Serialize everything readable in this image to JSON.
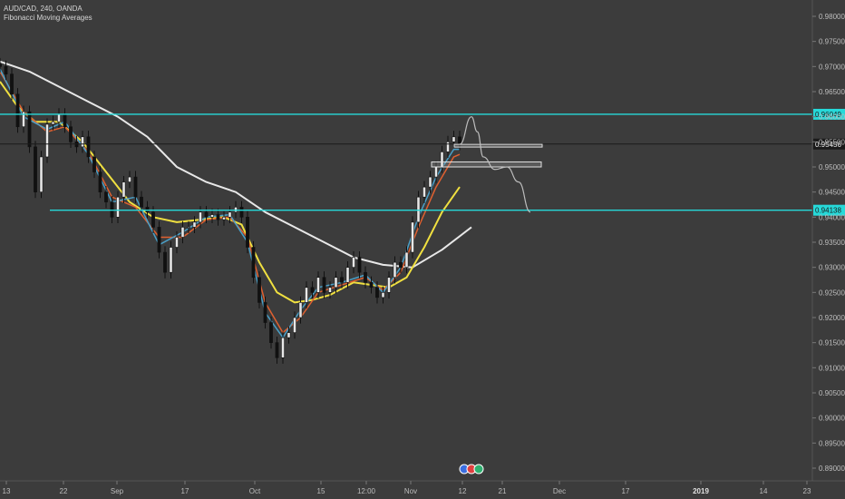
{
  "header": {
    "symbol": "AUD/CAD, 240, OANDA",
    "indicator": "Fibonacci Moving Averages"
  },
  "chart_data": {
    "type": "candlestick",
    "symbol": "AUD/CAD",
    "interval": "240",
    "source": "OANDA",
    "indicator": "Fibonacci Moving Averages",
    "y_axis": {
      "ticks": [
        "0.98000",
        "0.97500",
        "0.97000",
        "0.96500",
        "0.96000",
        "0.95500",
        "0.95000",
        "0.94500",
        "0.94000",
        "0.93500",
        "0.93000",
        "0.92500",
        "0.92000",
        "0.91500",
        "0.91000",
        "0.90500",
        "0.90000",
        "0.89500",
        "0.89000"
      ],
      "range": [
        0.8885,
        0.9825
      ]
    },
    "x_axis": {
      "ticks": [
        {
          "label": "13",
          "bold": false
        },
        {
          "label": "22",
          "bold": false
        },
        {
          "label": "Sep",
          "bold": false
        },
        {
          "label": "17",
          "bold": false
        },
        {
          "label": "Oct",
          "bold": false
        },
        {
          "label": "15",
          "bold": false
        },
        {
          "label": "12:00",
          "bold": false
        },
        {
          "label": "Nov",
          "bold": false
        },
        {
          "label": "12",
          "bold": false
        },
        {
          "label": "21",
          "bold": false
        },
        {
          "label": "Dec",
          "bold": false
        },
        {
          "label": "17",
          "bold": false
        },
        {
          "label": "2019",
          "bold": true
        },
        {
          "label": "14",
          "bold": false
        },
        {
          "label": "23",
          "bold": false
        }
      ]
    },
    "horizontal_levels": [
      {
        "price": 0.96049,
        "label": "0.96049",
        "color": "#26d9d9"
      },
      {
        "price": 0.94138,
        "label": "0.94138",
        "color": "#26d9d9"
      }
    ],
    "current_price": {
      "price": 0.95456,
      "label": "0.95456"
    },
    "zones": [
      {
        "price_top": 0.9545,
        "price_bottom": 0.954
      },
      {
        "price_top": 0.951,
        "price_bottom": 0.95
      }
    ],
    "price_path": [
      [
        0,
        0.97
      ],
      [
        1,
        0.9685
      ],
      [
        2,
        0.9645
      ],
      [
        3,
        0.958
      ],
      [
        4,
        0.961
      ],
      [
        5,
        0.954
      ],
      [
        6,
        0.945
      ],
      [
        7,
        0.952
      ],
      [
        8,
        0.9585
      ],
      [
        9,
        0.959
      ],
      [
        10,
        0.9605
      ],
      [
        11,
        0.958
      ],
      [
        12,
        0.955
      ],
      [
        13,
        0.954
      ],
      [
        14,
        0.956
      ],
      [
        15,
        0.952
      ],
      [
        16,
        0.949
      ],
      [
        17,
        0.945
      ],
      [
        18,
        0.943
      ],
      [
        19,
        0.94
      ],
      [
        20,
        0.944
      ],
      [
        21,
        0.947
      ],
      [
        22,
        0.948
      ],
      [
        23,
        0.944
      ],
      [
        24,
        0.942
      ],
      [
        25,
        0.941
      ],
      [
        26,
        0.938
      ],
      [
        27,
        0.933
      ],
      [
        28,
        0.929
      ],
      [
        29,
        0.934
      ],
      [
        30,
        0.936
      ],
      [
        31,
        0.938
      ],
      [
        32,
        0.938
      ],
      [
        33,
        0.939
      ],
      [
        34,
        0.941
      ],
      [
        35,
        0.94
      ],
      [
        36,
        0.9405
      ],
      [
        37,
        0.9395
      ],
      [
        38,
        0.94
      ],
      [
        39,
        0.941
      ],
      [
        40,
        0.942
      ],
      [
        41,
        0.94
      ],
      [
        42,
        0.934
      ],
      [
        43,
        0.928
      ],
      [
        44,
        0.923
      ],
      [
        45,
        0.919
      ],
      [
        46,
        0.915
      ],
      [
        47,
        0.912
      ],
      [
        48,
        0.916
      ],
      [
        49,
        0.917
      ],
      [
        50,
        0.92
      ],
      [
        51,
        0.923
      ],
      [
        52,
        0.926
      ],
      [
        53,
        0.925
      ],
      [
        54,
        0.928
      ],
      [
        55,
        0.925
      ],
      [
        56,
        0.926
      ],
      [
        57,
        0.928
      ],
      [
        58,
        0.927
      ],
      [
        59,
        0.93
      ],
      [
        60,
        0.932
      ],
      [
        61,
        0.929
      ],
      [
        62,
        0.927
      ],
      [
        63,
        0.926
      ],
      [
        64,
        0.924
      ],
      [
        65,
        0.925
      ],
      [
        66,
        0.928
      ],
      [
        67,
        0.931
      ],
      [
        68,
        0.93
      ],
      [
        69,
        0.933
      ],
      [
        70,
        0.939
      ],
      [
        71,
        0.944
      ],
      [
        72,
        0.946
      ],
      [
        73,
        0.948
      ],
      [
        74,
        0.95
      ],
      [
        75,
        0.953
      ],
      [
        76,
        0.955
      ],
      [
        77,
        0.956
      ],
      [
        78,
        0.9545
      ]
    ],
    "ma_lines": [
      {
        "color": "#e8e8e8",
        "width": 2,
        "points": [
          [
            0,
            0.971
          ],
          [
            5,
            0.969
          ],
          [
            10,
            0.966
          ],
          [
            15,
            0.963
          ],
          [
            20,
            0.96
          ],
          [
            25,
            0.956
          ],
          [
            30,
            0.95
          ],
          [
            35,
            0.947
          ],
          [
            40,
            0.945
          ],
          [
            45,
            0.941
          ],
          [
            50,
            0.938
          ],
          [
            55,
            0.935
          ],
          [
            60,
            0.932
          ],
          [
            65,
            0.9305
          ],
          [
            70,
            0.93
          ],
          [
            75,
            0.9335
          ],
          [
            80,
            0.938
          ]
        ]
      },
      {
        "color": "#f0e040",
        "width": 2,
        "points": [
          [
            0,
            0.967
          ],
          [
            3,
            0.962
          ],
          [
            6,
            0.959
          ],
          [
            10,
            0.959
          ],
          [
            14,
            0.955
          ],
          [
            18,
            0.949
          ],
          [
            22,
            0.943
          ],
          [
            26,
            0.94
          ],
          [
            30,
            0.939
          ],
          [
            34,
            0.9395
          ],
          [
            38,
            0.94
          ],
          [
            41,
            0.9385
          ],
          [
            44,
            0.931
          ],
          [
            47,
            0.925
          ],
          [
            50,
            0.923
          ],
          [
            53,
            0.9235
          ],
          [
            56,
            0.9245
          ],
          [
            60,
            0.927
          ],
          [
            63,
            0.9265
          ],
          [
            66,
            0.926
          ],
          [
            69,
            0.928
          ],
          [
            72,
            0.934
          ],
          [
            75,
            0.941
          ],
          [
            78,
            0.946
          ]
        ]
      },
      {
        "color": "#e06030",
        "width": 1.5,
        "points": [
          [
            0,
            0.969
          ],
          [
            4,
            0.961
          ],
          [
            8,
            0.957
          ],
          [
            11,
            0.958
          ],
          [
            15,
            0.953
          ],
          [
            19,
            0.944
          ],
          [
            23,
            0.942
          ],
          [
            27,
            0.936
          ],
          [
            31,
            0.936
          ],
          [
            35,
            0.9395
          ],
          [
            39,
            0.94
          ],
          [
            42,
            0.936
          ],
          [
            45,
            0.923
          ],
          [
            48,
            0.917
          ],
          [
            51,
            0.92
          ],
          [
            54,
            0.925
          ],
          [
            58,
            0.9265
          ],
          [
            62,
            0.928
          ],
          [
            65,
            0.9255
          ],
          [
            68,
            0.929
          ],
          [
            71,
            0.938
          ],
          [
            74,
            0.946
          ],
          [
            77,
            0.952
          ],
          [
            78,
            0.9525
          ]
        ]
      },
      {
        "color": "#4aa0c8",
        "width": 1.5,
        "points": [
          [
            0,
            0.9695
          ],
          [
            4,
            0.96
          ],
          [
            8,
            0.9575
          ],
          [
            11,
            0.959
          ],
          [
            15,
            0.9525
          ],
          [
            19,
            0.943
          ],
          [
            23,
            0.944
          ],
          [
            27,
            0.9345
          ],
          [
            31,
            0.937
          ],
          [
            35,
            0.94
          ],
          [
            39,
            0.9405
          ],
          [
            42,
            0.935
          ],
          [
            45,
            0.921
          ],
          [
            48,
            0.916
          ],
          [
            51,
            0.9215
          ],
          [
            54,
            0.926
          ],
          [
            58,
            0.927
          ],
          [
            62,
            0.9285
          ],
          [
            65,
            0.925
          ],
          [
            68,
            0.93
          ],
          [
            71,
            0.94
          ],
          [
            74,
            0.948
          ],
          [
            77,
            0.9535
          ],
          [
            78,
            0.9535
          ]
        ]
      }
    ],
    "projection": [
      [
        78,
        0.9545
      ],
      [
        80,
        0.96
      ],
      [
        81,
        0.957
      ],
      [
        82,
        0.952
      ],
      [
        84,
        0.9495
      ],
      [
        86,
        0.95
      ],
      [
        88,
        0.947
      ],
      [
        90,
        0.941
      ]
    ]
  }
}
